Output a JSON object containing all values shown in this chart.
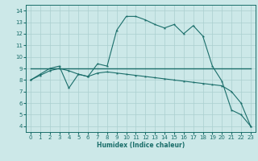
{
  "xlabel": "Humidex (Indice chaleur)",
  "bg_color": "#cce8e8",
  "grid_color": "#aacfcf",
  "line_color": "#1a6e6a",
  "xlim": [
    -0.5,
    23.5
  ],
  "ylim": [
    3.5,
    14.5
  ],
  "xticks": [
    0,
    1,
    2,
    3,
    4,
    5,
    6,
    7,
    8,
    9,
    10,
    11,
    12,
    13,
    14,
    15,
    16,
    17,
    18,
    19,
    20,
    21,
    22,
    23
  ],
  "yticks": [
    4,
    5,
    6,
    7,
    8,
    9,
    10,
    11,
    12,
    13,
    14
  ],
  "line1_x": [
    0,
    1,
    2,
    3,
    4,
    5,
    6,
    7,
    8,
    9,
    10,
    11,
    12,
    13,
    14,
    15,
    16,
    17,
    18,
    19,
    20,
    21,
    22,
    23
  ],
  "line1_y": [
    8.0,
    8.5,
    9.0,
    9.2,
    7.3,
    8.5,
    8.3,
    9.4,
    9.2,
    12.3,
    13.5,
    13.5,
    13.2,
    12.8,
    12.5,
    12.8,
    12.0,
    12.7,
    11.8,
    9.2,
    7.9,
    5.4,
    5.0,
    4.0
  ],
  "line2_x": [
    0,
    1,
    2,
    3,
    4,
    5,
    6,
    7,
    8,
    9,
    10,
    11,
    12,
    13,
    14,
    15,
    16,
    17,
    18,
    19,
    20,
    21,
    22,
    23
  ],
  "line2_y": [
    8.0,
    8.4,
    8.8,
    9.0,
    8.8,
    8.5,
    8.3,
    8.6,
    8.7,
    8.6,
    8.5,
    8.4,
    8.3,
    8.2,
    8.1,
    8.0,
    7.9,
    7.8,
    7.7,
    7.6,
    7.5,
    7.0,
    6.0,
    4.0
  ],
  "line3_x": [
    0,
    23
  ],
  "line3_y": [
    9.0,
    9.0
  ]
}
